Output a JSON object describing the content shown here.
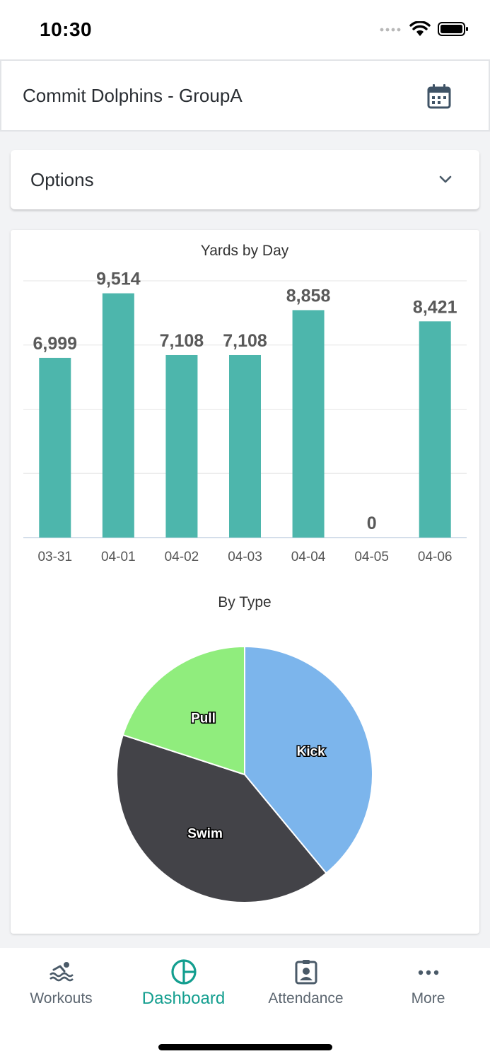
{
  "status_bar": {
    "time": "10:30"
  },
  "header": {
    "title": "Commit Dolphins - GroupA",
    "calendar_icon": "calendar-icon"
  },
  "options": {
    "label": "Options",
    "chevron_icon": "chevron-down-icon"
  },
  "colors": {
    "bar": "#4db6ac",
    "kick": "#7cb5ec",
    "swim": "#434348",
    "pull": "#90ed7d",
    "accent": "#139e8f"
  },
  "chart_data": [
    {
      "type": "bar",
      "title": "Yards by Day",
      "categories": [
        "03-31",
        "04-01",
        "04-02",
        "04-03",
        "04-04",
        "04-05",
        "04-06"
      ],
      "values": [
        6999,
        9514,
        7108,
        7108,
        8858,
        0,
        8421
      ],
      "value_labels": [
        "6,999",
        "9,514",
        "7,108",
        "7,108",
        "8,858",
        "0",
        "8,421"
      ],
      "ylim": [
        0,
        10000
      ],
      "grid": true,
      "xlabel": "",
      "ylabel": ""
    },
    {
      "type": "pie",
      "title": "By Type",
      "labels": [
        "Kick",
        "Swim",
        "Pull"
      ],
      "values": [
        39,
        41,
        20
      ]
    }
  ],
  "tabs": [
    {
      "label": "Workouts",
      "icon": "swimmer-icon",
      "active": false
    },
    {
      "label": "Dashboard",
      "icon": "pie-chart-icon",
      "active": true
    },
    {
      "label": "Attendance",
      "icon": "badge-icon",
      "active": false
    },
    {
      "label": "More",
      "icon": "more-dots-icon",
      "active": false
    }
  ]
}
